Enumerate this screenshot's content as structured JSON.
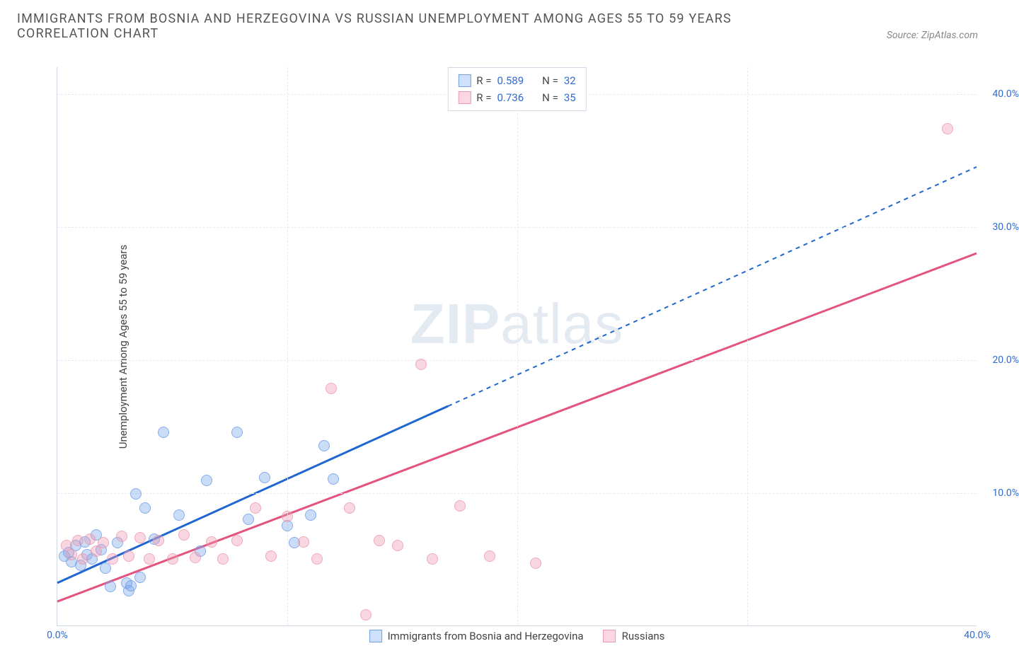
{
  "header": {
    "title": "IMMIGRANTS FROM BOSNIA AND HERZEGOVINA VS RUSSIAN UNEMPLOYMENT AMONG AGES 55 TO 59 YEARS CORRELATION CHART",
    "source": "Source: ZipAtlas.com"
  },
  "watermark": {
    "bold": "ZIP",
    "light": "atlas"
  },
  "chart": {
    "type": "scatter",
    "y_axis_label": "Unemployment Among Ages 55 to 59 years",
    "xlim": [
      0,
      40
    ],
    "ylim": [
      0,
      42
    ],
    "x_ticks": [
      0,
      40
    ],
    "x_tick_labels": [
      "0.0%",
      "40.0%"
    ],
    "y_ticks": [
      10,
      20,
      30,
      40
    ],
    "y_tick_labels": [
      "10.0%",
      "20.0%",
      "30.0%",
      "40.0%"
    ],
    "grid_h": [
      10,
      20,
      30,
      40
    ],
    "grid_v": [
      10,
      20,
      30
    ],
    "background_color": "#ffffff",
    "grid_color": "#e6eaf0",
    "axis_color": "#cfd8e3",
    "tick_label_color": "#2f6bd6",
    "legend_top": {
      "r_label": "R =",
      "n_label": "N =",
      "rows": [
        {
          "swatch_fill": "#cfe0fb",
          "swatch_border": "#6fa0ea",
          "r": "0.589",
          "n": "32"
        },
        {
          "swatch_fill": "#fbd7e1",
          "swatch_border": "#ea9ab2",
          "r": "0.736",
          "n": "35"
        }
      ]
    },
    "legend_bottom": {
      "items": [
        {
          "swatch_fill": "#cfe0fb",
          "swatch_border": "#6fa0ea",
          "label": "Immigrants from Bosnia and Herzegovina"
        },
        {
          "swatch_fill": "#fbd7e1",
          "swatch_border": "#ea9ab2",
          "label": "Russians"
        }
      ]
    },
    "series": [
      {
        "name": "bosnia",
        "point_fill": "rgba(120,165,235,0.45)",
        "point_stroke": "#6fa0ea",
        "trend_color": "#1e66d0",
        "trend_solid": {
          "x1": 0,
          "y1": 3.2,
          "x2": 17,
          "y2": 16.5
        },
        "trend_dash": {
          "x1": 17,
          "y1": 16.5,
          "x2": 40,
          "y2": 34.5
        },
        "points": [
          [
            0.3,
            5.2
          ],
          [
            0.5,
            5.5
          ],
          [
            0.6,
            4.8
          ],
          [
            0.8,
            6.0
          ],
          [
            1.0,
            4.5
          ],
          [
            1.2,
            6.3
          ],
          [
            1.3,
            5.3
          ],
          [
            1.5,
            5.0
          ],
          [
            1.7,
            6.8
          ],
          [
            1.9,
            5.7
          ],
          [
            2.1,
            4.3
          ],
          [
            2.3,
            2.9
          ],
          [
            2.6,
            6.2
          ],
          [
            3.0,
            3.2
          ],
          [
            3.1,
            2.6
          ],
          [
            3.2,
            3.0
          ],
          [
            3.4,
            9.9
          ],
          [
            3.6,
            3.6
          ],
          [
            3.8,
            8.8
          ],
          [
            4.2,
            6.5
          ],
          [
            4.6,
            14.5
          ],
          [
            5.3,
            8.3
          ],
          [
            6.2,
            5.6
          ],
          [
            6.5,
            10.9
          ],
          [
            7.8,
            14.5
          ],
          [
            8.3,
            8.0
          ],
          [
            9.0,
            11.1
          ],
          [
            10.0,
            7.5
          ],
          [
            10.3,
            6.2
          ],
          [
            11.0,
            8.3
          ],
          [
            11.6,
            13.5
          ],
          [
            12.0,
            11.0
          ]
        ]
      },
      {
        "name": "russians",
        "point_fill": "rgba(240,150,175,0.45)",
        "point_stroke": "#ea9ab2",
        "trend_color": "#e4537d",
        "trend_solid": {
          "x1": 0,
          "y1": 1.8,
          "x2": 40,
          "y2": 28.0
        },
        "trend_dash": null,
        "points": [
          [
            0.4,
            6.0
          ],
          [
            0.6,
            5.3
          ],
          [
            0.9,
            6.4
          ],
          [
            1.1,
            5.0
          ],
          [
            1.4,
            6.5
          ],
          [
            1.7,
            5.6
          ],
          [
            2.0,
            6.2
          ],
          [
            2.4,
            5.0
          ],
          [
            2.8,
            6.7
          ],
          [
            3.1,
            5.2
          ],
          [
            3.6,
            6.6
          ],
          [
            4.0,
            5.0
          ],
          [
            4.4,
            6.4
          ],
          [
            5.0,
            5.0
          ],
          [
            5.5,
            6.8
          ],
          [
            6.0,
            5.1
          ],
          [
            6.7,
            6.3
          ],
          [
            7.2,
            5.0
          ],
          [
            7.8,
            6.4
          ],
          [
            8.6,
            8.8
          ],
          [
            9.3,
            5.2
          ],
          [
            10.0,
            8.2
          ],
          [
            10.7,
            6.3
          ],
          [
            11.3,
            5.0
          ],
          [
            11.9,
            17.8
          ],
          [
            12.7,
            8.8
          ],
          [
            13.4,
            0.8
          ],
          [
            14.0,
            6.4
          ],
          [
            14.8,
            6.0
          ],
          [
            15.8,
            19.6
          ],
          [
            16.3,
            5.0
          ],
          [
            17.5,
            9.0
          ],
          [
            18.8,
            5.2
          ],
          [
            20.8,
            4.7
          ],
          [
            38.7,
            37.3
          ]
        ]
      }
    ]
  }
}
